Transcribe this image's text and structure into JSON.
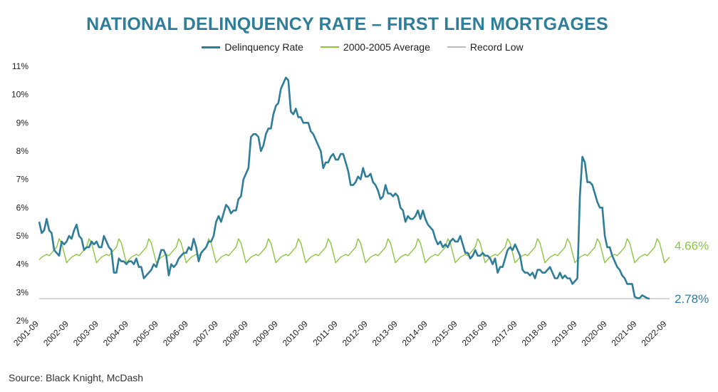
{
  "chart_data": {
    "type": "line",
    "title": "NATIONAL DELINQUENCY RATE – FIRST LIEN MORTGAGES",
    "ylim": [
      2,
      11
    ],
    "yticks": [
      "2%",
      "3%",
      "4%",
      "5%",
      "6%",
      "7%",
      "8%",
      "9%",
      "10%",
      "11%"
    ],
    "yvalues": [
      2,
      3,
      4,
      5,
      6,
      7,
      8,
      9,
      10,
      11
    ],
    "x_start": "2001-09",
    "x_end": "2022-10",
    "xticks": [
      "2001-09",
      "2002-09",
      "2003-09",
      "2004-09",
      "2005-09",
      "2006-09",
      "2007-09",
      "2008-09",
      "2009-09",
      "2010-09",
      "2011-09",
      "2012-09",
      "2013-09",
      "2014-09",
      "2015-09",
      "2016-09",
      "2017-09",
      "2018-09",
      "2019-09",
      "2020-09",
      "2021-09",
      "2022-09"
    ],
    "legend_position": "top-center",
    "series": [
      {
        "name": "Delinquency Rate",
        "color": "#2e7d99",
        "end_label": "2.78%",
        "points": [
          [
            "2001-09",
            5.5
          ],
          [
            "2001-10",
            5.1
          ],
          [
            "2001-11",
            5.2
          ],
          [
            "2001-12",
            5.6
          ],
          [
            "2002-01",
            5.2
          ],
          [
            "2002-02",
            5.1
          ],
          [
            "2002-03",
            4.5
          ],
          [
            "2002-04",
            4.4
          ],
          [
            "2002-05",
            4.3
          ],
          [
            "2002-06",
            4.8
          ],
          [
            "2002-07",
            4.7
          ],
          [
            "2002-08",
            4.8
          ],
          [
            "2002-09",
            5.0
          ],
          [
            "2002-10",
            4.9
          ],
          [
            "2002-11",
            5.2
          ],
          [
            "2002-12",
            5.4
          ],
          [
            "2003-01",
            5.0
          ],
          [
            "2003-02",
            4.9
          ],
          [
            "2003-03",
            4.5
          ],
          [
            "2003-04",
            4.6
          ],
          [
            "2003-05",
            4.6
          ],
          [
            "2003-06",
            4.8
          ],
          [
            "2003-07",
            4.7
          ],
          [
            "2003-08",
            4.8
          ],
          [
            "2003-09",
            4.6
          ],
          [
            "2003-10",
            4.6
          ],
          [
            "2003-11",
            5.0
          ],
          [
            "2003-12",
            4.8
          ],
          [
            "2004-01",
            4.6
          ],
          [
            "2004-02",
            4.5
          ],
          [
            "2004-03",
            3.7
          ],
          [
            "2004-04",
            3.7
          ],
          [
            "2004-05",
            4.2
          ],
          [
            "2004-06",
            4.1
          ],
          [
            "2004-07",
            4.1
          ],
          [
            "2004-08",
            4.0
          ],
          [
            "2004-09",
            4.1
          ],
          [
            "2004-10",
            4.1
          ],
          [
            "2004-11",
            4.0
          ],
          [
            "2004-12",
            4.2
          ],
          [
            "2005-01",
            3.9
          ],
          [
            "2005-02",
            3.9
          ],
          [
            "2005-03",
            3.5
          ],
          [
            "2005-04",
            3.6
          ],
          [
            "2005-05",
            3.7
          ],
          [
            "2005-06",
            3.8
          ],
          [
            "2005-07",
            4.0
          ],
          [
            "2005-08",
            3.9
          ],
          [
            "2005-09",
            4.2
          ],
          [
            "2005-10",
            4.5
          ],
          [
            "2005-11",
            4.5
          ],
          [
            "2005-12",
            4.3
          ],
          [
            "2006-01",
            3.6
          ],
          [
            "2006-02",
            4.0
          ],
          [
            "2006-03",
            3.9
          ],
          [
            "2006-04",
            4.0
          ],
          [
            "2006-05",
            4.2
          ],
          [
            "2006-06",
            4.3
          ],
          [
            "2006-07",
            4.4
          ],
          [
            "2006-08",
            4.4
          ],
          [
            "2006-09",
            4.6
          ],
          [
            "2006-10",
            4.5
          ],
          [
            "2006-11",
            4.9
          ],
          [
            "2006-12",
            4.6
          ],
          [
            "2007-01",
            4.1
          ],
          [
            "2007-02",
            4.4
          ],
          [
            "2007-03",
            4.5
          ],
          [
            "2007-04",
            4.6
          ],
          [
            "2007-05",
            4.8
          ],
          [
            "2007-06",
            4.8
          ],
          [
            "2007-07",
            5.0
          ],
          [
            "2007-08",
            5.5
          ],
          [
            "2007-09",
            5.7
          ],
          [
            "2007-10",
            5.5
          ],
          [
            "2007-11",
            5.8
          ],
          [
            "2007-12",
            6.1
          ],
          [
            "2008-01",
            6.0
          ],
          [
            "2008-02",
            5.8
          ],
          [
            "2008-03",
            5.9
          ],
          [
            "2008-04",
            5.9
          ],
          [
            "2008-05",
            6.3
          ],
          [
            "2008-06",
            6.4
          ],
          [
            "2008-07",
            7.0
          ],
          [
            "2008-08",
            7.2
          ],
          [
            "2008-09",
            7.4
          ],
          [
            "2008-10",
            8.5
          ],
          [
            "2008-11",
            8.6
          ],
          [
            "2008-12",
            8.6
          ],
          [
            "2009-01",
            8.5
          ],
          [
            "2009-02",
            8.0
          ],
          [
            "2009-03",
            8.2
          ],
          [
            "2009-04",
            8.6
          ],
          [
            "2009-05",
            8.8
          ],
          [
            "2009-06",
            8.8
          ],
          [
            "2009-07",
            9.3
          ],
          [
            "2009-08",
            9.6
          ],
          [
            "2009-09",
            9.7
          ],
          [
            "2009-10",
            10.2
          ],
          [
            "2009-11",
            10.4
          ],
          [
            "2009-12",
            10.6
          ],
          [
            "2010-01",
            10.5
          ],
          [
            "2010-02",
            9.4
          ],
          [
            "2010-03",
            9.3
          ],
          [
            "2010-04",
            9.5
          ],
          [
            "2010-05",
            9.2
          ],
          [
            "2010-06",
            9.2
          ],
          [
            "2010-07",
            9.0
          ],
          [
            "2010-08",
            9.0
          ],
          [
            "2010-09",
            9.0
          ],
          [
            "2010-10",
            8.7
          ],
          [
            "2010-11",
            8.6
          ],
          [
            "2010-12",
            8.4
          ],
          [
            "2011-01",
            8.2
          ],
          [
            "2011-02",
            8.0
          ],
          [
            "2011-03",
            7.4
          ],
          [
            "2011-04",
            7.6
          ],
          [
            "2011-05",
            7.6
          ],
          [
            "2011-06",
            7.8
          ],
          [
            "2011-07",
            7.9
          ],
          [
            "2011-08",
            7.7
          ],
          [
            "2011-09",
            7.7
          ],
          [
            "2011-10",
            7.9
          ],
          [
            "2011-11",
            7.9
          ],
          [
            "2011-12",
            7.6
          ],
          [
            "2012-01",
            7.3
          ],
          [
            "2012-02",
            6.8
          ],
          [
            "2012-03",
            6.8
          ],
          [
            "2012-04",
            6.9
          ],
          [
            "2012-05",
            7.1
          ],
          [
            "2012-06",
            7.0
          ],
          [
            "2012-07",
            7.4
          ],
          [
            "2012-08",
            7.1
          ],
          [
            "2012-09",
            7.1
          ],
          [
            "2012-10",
            7.2
          ],
          [
            "2012-11",
            6.9
          ],
          [
            "2012-12",
            6.8
          ],
          [
            "2013-01",
            6.6
          ],
          [
            "2013-02",
            6.3
          ],
          [
            "2013-03",
            6.4
          ],
          [
            "2013-04",
            6.8
          ],
          [
            "2013-05",
            6.5
          ],
          [
            "2013-06",
            6.5
          ],
          [
            "2013-07",
            6.4
          ],
          [
            "2013-08",
            6.5
          ],
          [
            "2013-09",
            6.4
          ],
          [
            "2013-10",
            6.0
          ],
          [
            "2013-11",
            5.9
          ],
          [
            "2013-12",
            5.5
          ],
          [
            "2014-01",
            5.7
          ],
          [
            "2014-02",
            5.6
          ],
          [
            "2014-03",
            5.6
          ],
          [
            "2014-04",
            5.7
          ],
          [
            "2014-05",
            5.9
          ],
          [
            "2014-06",
            5.6
          ],
          [
            "2014-07",
            5.9
          ],
          [
            "2014-08",
            5.6
          ],
          [
            "2014-09",
            5.4
          ],
          [
            "2014-10",
            5.3
          ],
          [
            "2014-11",
            5.2
          ],
          [
            "2014-12",
            4.9
          ],
          [
            "2015-01",
            4.7
          ],
          [
            "2015-02",
            4.8
          ],
          [
            "2015-03",
            4.6
          ],
          [
            "2015-04",
            4.7
          ],
          [
            "2015-05",
            4.6
          ],
          [
            "2015-06",
            4.8
          ],
          [
            "2015-07",
            4.9
          ],
          [
            "2015-08",
            4.8
          ],
          [
            "2015-09",
            4.8
          ],
          [
            "2015-10",
            5.0
          ],
          [
            "2015-11",
            4.7
          ],
          [
            "2015-12",
            4.4
          ],
          [
            "2016-01",
            4.4
          ],
          [
            "2016-02",
            4.2
          ],
          [
            "2016-03",
            4.3
          ],
          [
            "2016-04",
            4.5
          ],
          [
            "2016-05",
            4.3
          ],
          [
            "2016-06",
            4.3
          ],
          [
            "2016-07",
            4.4
          ],
          [
            "2016-08",
            4.3
          ],
          [
            "2016-09",
            4.3
          ],
          [
            "2016-10",
            4.2
          ],
          [
            "2016-11",
            4.0
          ],
          [
            "2016-12",
            4.2
          ],
          [
            "2017-01",
            3.7
          ],
          [
            "2017-02",
            3.9
          ],
          [
            "2017-03",
            3.9
          ],
          [
            "2017-04",
            4.2
          ],
          [
            "2017-05",
            4.5
          ],
          [
            "2017-06",
            4.6
          ],
          [
            "2017-07",
            4.5
          ],
          [
            "2017-08",
            4.7
          ],
          [
            "2017-09",
            4.5
          ],
          [
            "2017-10",
            4.3
          ],
          [
            "2017-11",
            3.8
          ],
          [
            "2017-12",
            3.7
          ],
          [
            "2018-01",
            3.7
          ],
          [
            "2018-02",
            3.6
          ],
          [
            "2018-03",
            3.7
          ],
          [
            "2018-04",
            3.5
          ],
          [
            "2018-05",
            3.8
          ],
          [
            "2018-06",
            3.8
          ],
          [
            "2018-07",
            3.7
          ],
          [
            "2018-08",
            3.7
          ],
          [
            "2018-09",
            3.8
          ],
          [
            "2018-10",
            3.9
          ],
          [
            "2018-11",
            3.7
          ],
          [
            "2018-12",
            3.5
          ],
          [
            "2019-01",
            3.5
          ],
          [
            "2019-02",
            3.7
          ],
          [
            "2019-03",
            3.5
          ],
          [
            "2019-04",
            3.6
          ],
          [
            "2019-05",
            3.5
          ],
          [
            "2019-06",
            3.5
          ],
          [
            "2019-07",
            3.3
          ],
          [
            "2019-08",
            3.4
          ],
          [
            "2019-09",
            3.5
          ],
          [
            "2019-10",
            6.4
          ],
          [
            "2019-11",
            7.8
          ],
          [
            "2019-12",
            7.6
          ],
          [
            "2020-01",
            6.9
          ],
          [
            "2020-02",
            6.9
          ],
          [
            "2020-03",
            6.8
          ],
          [
            "2020-04",
            6.5
          ],
          [
            "2020-05",
            6.2
          ],
          [
            "2020-06",
            6.0
          ],
          [
            "2020-07",
            6.0
          ],
          [
            "2020-08",
            5.0
          ],
          [
            "2020-09",
            4.6
          ],
          [
            "2020-10",
            4.6
          ],
          [
            "2020-11",
            4.3
          ],
          [
            "2020-12",
            4.1
          ],
          [
            "2021-01",
            3.9
          ],
          [
            "2021-02",
            3.8
          ],
          [
            "2021-03",
            3.6
          ],
          [
            "2021-04",
            3.5
          ],
          [
            "2021-05",
            3.3
          ],
          [
            "2021-06",
            3.3
          ],
          [
            "2021-07",
            3.3
          ],
          [
            "2021-08",
            2.85
          ],
          [
            "2021-09",
            2.8
          ],
          [
            "2021-10",
            2.8
          ],
          [
            "2021-11",
            2.9
          ],
          [
            "2021-12",
            2.85
          ],
          [
            "2022-01",
            2.8
          ],
          [
            "2022-02",
            2.78
          ]
        ]
      },
      {
        "name": "2000-2005 Average",
        "color": "#8cc63f",
        "end_label": "4.66%",
        "seasonal_pattern": [
          4.3,
          4.4,
          4.5,
          4.6,
          4.9,
          4.75,
          4.4,
          4.05,
          4.15,
          4.25,
          4.3,
          4.35
        ],
        "end_value": 4.66
      },
      {
        "name": "Record Low",
        "color": "#b9b9b9",
        "value": 2.78
      }
    ]
  },
  "source": "Source: Black Knight, McDash"
}
